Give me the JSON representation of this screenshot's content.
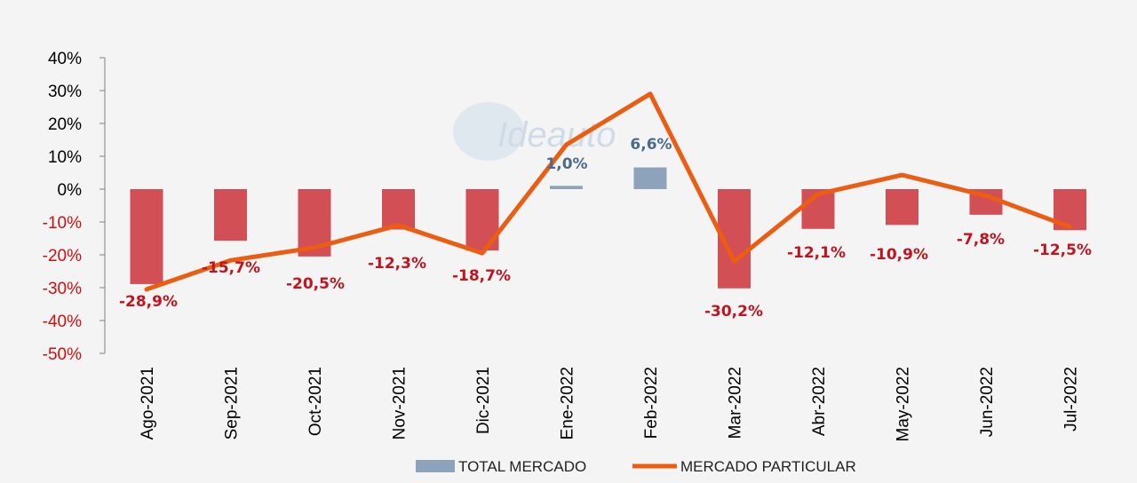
{
  "chart_data": {
    "type": "bar",
    "categories": [
      "Ago-2021",
      "Sep-2021",
      "Oct-2021",
      "Nov-2021",
      "Dic-2021",
      "Ene-2022",
      "Feb-2022",
      "Mar-2022",
      "Abr-2022",
      "May-2022",
      "Jun-2022",
      "Jul-2022"
    ],
    "ylim": [
      -50,
      40
    ],
    "yticks": [
      40,
      30,
      20,
      10,
      0,
      -10,
      -20,
      -30,
      -40,
      -50
    ],
    "ytick_labels": [
      "40%",
      "30%",
      "20%",
      "10%",
      "0%",
      "-10%",
      "-20%",
      "-30%",
      "-40%",
      "-50%"
    ],
    "grid": false,
    "legend_position": "bottom",
    "series": [
      {
        "name": "TOTAL MERCADO",
        "kind": "bar",
        "values": [
          -28.9,
          -15.7,
          -20.5,
          -12.3,
          -18.7,
          1.0,
          6.6,
          -30.2,
          -12.1,
          -10.9,
          -7.8,
          -12.5
        ],
        "labels": [
          "-28,9%",
          "-15,7%",
          "-20,5%",
          "-12,3%",
          "-18,7%",
          "1,0%",
          "6,6%",
          "-30,2%",
          "-12,1%",
          "-10,9%",
          "-7,8%",
          "-12,5%"
        ]
      },
      {
        "name": "MERCADO PARTICULAR",
        "kind": "line",
        "values": [
          -30.5,
          -21.7,
          -17.8,
          -11.0,
          -19.5,
          13.5,
          29.0,
          -22.0,
          -1.5,
          4.3,
          -2.0,
          -11.5
        ]
      }
    ],
    "colors": {
      "negative_bar": "#d14f55",
      "positive_bar": "#8da3bb",
      "line": "#eb5d12",
      "negative_text": "#c0141f",
      "positive_text": "#4c6a8e",
      "positive_tick": "#000000",
      "negative_tick": "#cc1010"
    }
  },
  "legend": {
    "total_label": "TOTAL MERCADO",
    "particular_label": "MERCADO PARTICULAR"
  },
  "watermark": {
    "text": "Ideauto"
  }
}
